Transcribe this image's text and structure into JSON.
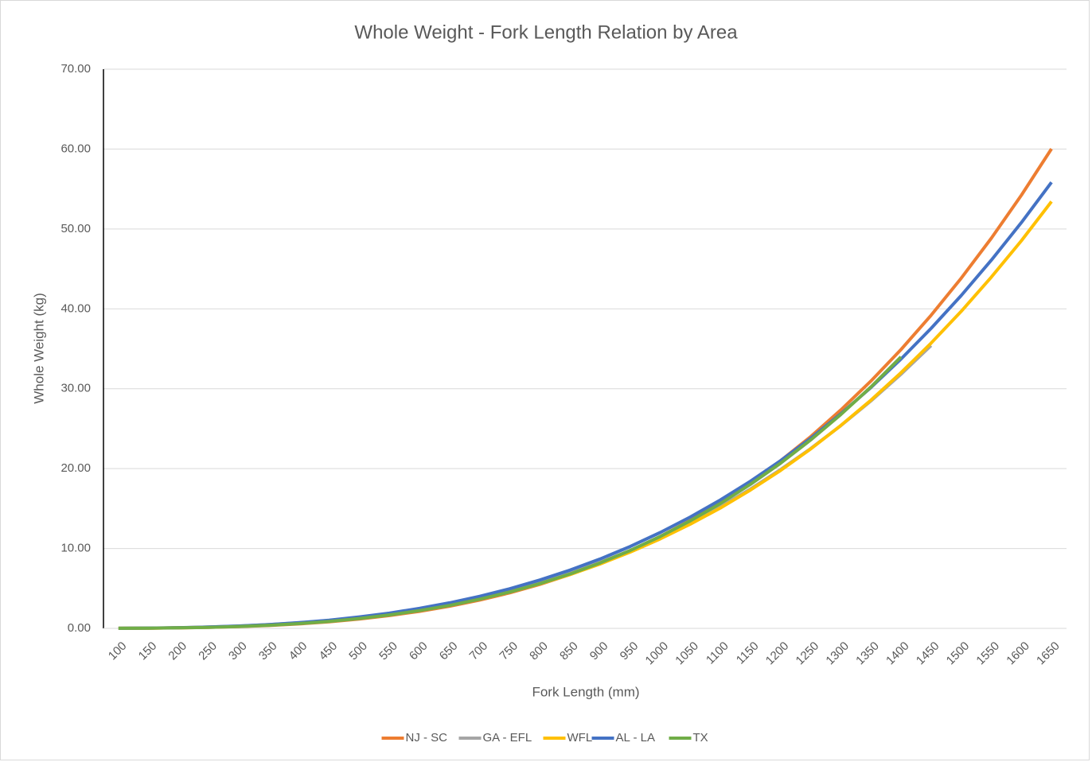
{
  "chart_data": {
    "type": "line",
    "title": "Whole Weight - Fork Length Relation by Area",
    "x_label": "Fork Length (mm)",
    "y_label": "Whole Weight (kg)",
    "categories": [
      "100",
      "150",
      "200",
      "250",
      "300",
      "350",
      "400",
      "450",
      "500",
      "550",
      "600",
      "650",
      "700",
      "750",
      "800",
      "850",
      "900",
      "950",
      "1000",
      "1050",
      "1100",
      "1150",
      "1200",
      "1250",
      "1300",
      "1350",
      "1400",
      "1450",
      "1500",
      "1550",
      "1600",
      "1650"
    ],
    "ylim": [
      0,
      70
    ],
    "yticks": [
      {
        "value": 0,
        "label": "0.00"
      },
      {
        "value": 10,
        "label": "10.00"
      },
      {
        "value": 20,
        "label": "20.00"
      },
      {
        "value": 30,
        "label": "30.00"
      },
      {
        "value": 40,
        "label": "40.00"
      },
      {
        "value": 50,
        "label": "50.00"
      },
      {
        "value": 60,
        "label": "60.00"
      },
      {
        "value": 70,
        "label": "70.00"
      }
    ],
    "grid": true,
    "legend": "bottom",
    "series": [
      {
        "name": "NJ - SC",
        "color": "#ed7d31",
        "values": [
          0.006,
          0.022,
          0.057,
          0.119,
          0.216,
          0.36,
          0.559,
          0.824,
          1.167,
          1.6,
          2.13,
          2.77,
          3.54,
          4.45,
          5.51,
          6.73,
          8.12,
          9.71,
          11.5,
          13.51,
          15.75,
          18.24,
          20.99,
          24.01,
          27.34,
          30.96,
          34.9,
          39.19,
          43.84,
          48.84,
          54.23,
          60.03
        ]
      },
      {
        "name": "GA - EFL",
        "color": "#a5a5a5",
        "values": [
          0.01,
          0.035,
          0.084,
          0.166,
          0.29,
          0.464,
          0.697,
          0.999,
          1.38,
          1.84,
          2.4,
          3.06,
          3.84,
          4.74,
          5.77,
          6.94,
          8.27,
          9.75,
          11.4,
          13.23,
          15.25,
          17.46,
          19.88,
          22.51,
          25.38,
          28.47,
          31.81,
          35.41,
          null,
          null,
          null,
          null
        ]
      },
      {
        "name": "WFL",
        "color": "#ffc000",
        "values": [
          0.0085,
          0.03,
          0.074,
          0.148,
          0.262,
          0.424,
          0.642,
          0.927,
          1.29,
          1.73,
          2.27,
          2.92,
          3.68,
          4.56,
          5.58,
          6.74,
          8.06,
          9.54,
          11.2,
          13.04,
          15.08,
          17.33,
          19.78,
          22.46,
          25.4,
          28.57,
          32.0,
          35.71,
          39.69,
          43.97,
          48.53,
          53.43
        ]
      },
      {
        "name": "AL - LA",
        "color": "#4472c4",
        "values": [
          0.01,
          0.035,
          0.086,
          0.17,
          0.298,
          0.478,
          0.72,
          1.03,
          1.43,
          1.91,
          2.5,
          3.2,
          4.01,
          4.96,
          6.05,
          7.29,
          8.68,
          10.25,
          12.0,
          13.94,
          16.08,
          18.43,
          21.0,
          23.8,
          26.86,
          30.15,
          33.72,
          37.55,
          41.67,
          46.09,
          50.8,
          55.84
        ]
      },
      {
        "name": "TX",
        "color": "#70ad47",
        "values": [
          0.007,
          0.026,
          0.065,
          0.132,
          0.238,
          0.391,
          0.602,
          0.879,
          1.23,
          1.68,
          2.22,
          2.87,
          3.65,
          4.55,
          5.61,
          6.81,
          8.19,
          9.75,
          11.5,
          13.46,
          15.63,
          18.04,
          20.68,
          23.59,
          26.77,
          30.22,
          33.98,
          null,
          null,
          null,
          null,
          null
        ]
      }
    ]
  }
}
